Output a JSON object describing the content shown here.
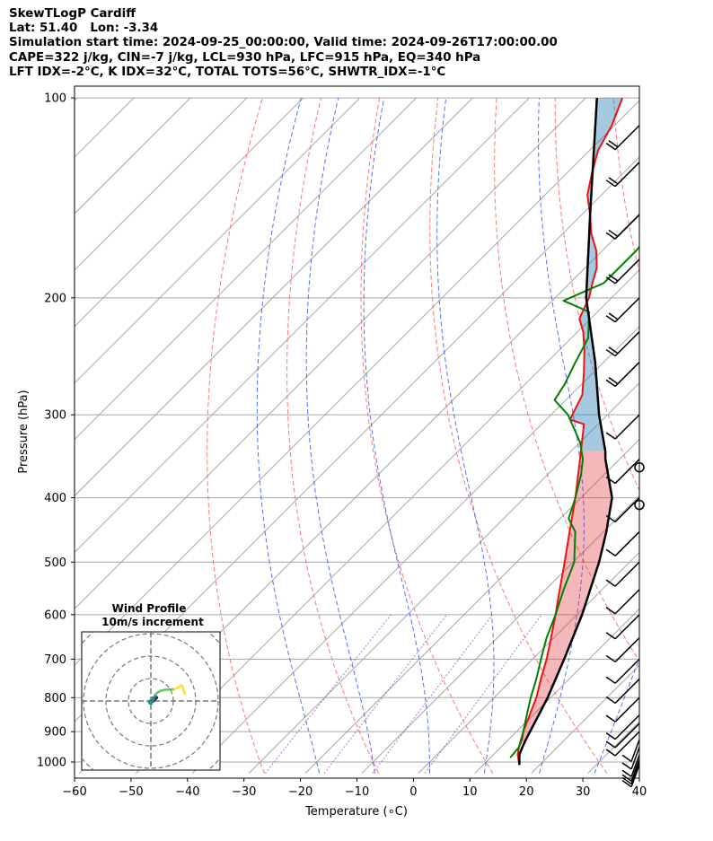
{
  "header": {
    "title": "SkewTLogP Cardiff",
    "location": "Lat: 51.40   Lon: -3.34",
    "times": "Simulation start time: 2024-09-25_00:00:00, Valid time: 2024-09-26T17:00:00.00",
    "indices_1": "CAPE=322 j/kg, CIN=-7 j/kg, LCL=930 hPa, LFC=915 hPa, EQ=340 hPa",
    "indices_2": "LFT IDX=-2°C, K IDX=32°C, TOTAL TOTS=56°C, SHWTR_IDX=-1°C"
  },
  "chart_data": {
    "type": "line",
    "chart_kind": "skew-T log-P diagram",
    "xlabel": "Temperature (∘C)",
    "ylabel": "Pressure (hPa)",
    "xlim": [
      -60,
      40
    ],
    "ylim_hpa": [
      1040,
      100
    ],
    "y_scale": "log",
    "grid": true,
    "x_ticks": [
      -60,
      -50,
      -40,
      -30,
      -20,
      -10,
      0,
      10,
      20,
      30,
      40
    ],
    "y_ticks": [
      100,
      200,
      300,
      400,
      500,
      600,
      700,
      800,
      900,
      1000
    ],
    "series": [
      {
        "role": "temperature",
        "color": "#ee1111",
        "points": [
          [
            1010,
            16.4
          ],
          [
            975,
            14.3
          ],
          [
            950,
            13.2
          ],
          [
            925,
            12.4
          ],
          [
            900,
            11.2
          ],
          [
            850,
            9.4
          ],
          [
            800,
            7.5
          ],
          [
            750,
            5.0
          ],
          [
            700,
            2.5
          ],
          [
            650,
            -0.5
          ],
          [
            600,
            -3.8
          ],
          [
            550,
            -7.5
          ],
          [
            500,
            -11.5
          ],
          [
            450,
            -16.0
          ],
          [
            400,
            -21.0
          ],
          [
            370,
            -24.5
          ],
          [
            350,
            -27.0
          ],
          [
            310,
            -32.5
          ],
          [
            305,
            -35.8
          ],
          [
            280,
            -38.0
          ],
          [
            260,
            -41.5
          ],
          [
            240,
            -45.5
          ],
          [
            225,
            -49.0
          ],
          [
            215,
            -52.0
          ],
          [
            200,
            -54.0
          ],
          [
            190,
            -56.0
          ],
          [
            180,
            -58.0
          ],
          [
            170,
            -61.0
          ],
          [
            160,
            -65.0
          ],
          [
            150,
            -68.5
          ],
          [
            140,
            -72.5
          ],
          [
            130,
            -75.5
          ],
          [
            120,
            -78.5
          ],
          [
            110,
            -80.5
          ],
          [
            100,
            -83.5
          ]
        ]
      },
      {
        "role": "dewpoint",
        "color": "#008000",
        "points": [
          [
            985,
            13.5
          ],
          [
            950,
            13.2
          ],
          [
            925,
            12.2
          ],
          [
            900,
            11.2
          ],
          [
            850,
            8.9
          ],
          [
            800,
            6.5
          ],
          [
            750,
            4.2
          ],
          [
            700,
            1.5
          ],
          [
            650,
            -1.3
          ],
          [
            600,
            -3.8
          ],
          [
            550,
            -6.8
          ],
          [
            500,
            -9.8
          ],
          [
            450,
            -15.0
          ],
          [
            430,
            -18.5
          ],
          [
            400,
            -21.0
          ],
          [
            370,
            -24.0
          ],
          [
            350,
            -26.5
          ],
          [
            330,
            -30.0
          ],
          [
            300,
            -37.0
          ],
          [
            285,
            -42.0
          ],
          [
            270,
            -43.0
          ],
          [
            250,
            -45.0
          ],
          [
            230,
            -47.0
          ],
          [
            210,
            -51.5
          ],
          [
            202,
            -58.0
          ],
          [
            190,
            -54.0
          ],
          [
            170,
            -54.0
          ],
          [
            150,
            -55.0
          ],
          [
            130,
            -57.0
          ],
          [
            110,
            -59.0
          ],
          [
            100,
            -61.0
          ]
        ]
      },
      {
        "role": "parcel",
        "color": "#000000",
        "points": [
          [
            1010,
            16.4
          ],
          [
            975,
            14.6
          ],
          [
            950,
            13.8
          ],
          [
            930,
            13.2
          ],
          [
            900,
            12.4
          ],
          [
            850,
            11.0
          ],
          [
            800,
            9.5
          ],
          [
            700,
            5.6
          ],
          [
            600,
            0.9
          ],
          [
            500,
            -5.4
          ],
          [
            450,
            -9.5
          ],
          [
            400,
            -14.5
          ],
          [
            350,
            -22.5
          ],
          [
            340,
            -24.0
          ],
          [
            300,
            -31.5
          ],
          [
            250,
            -41.5
          ],
          [
            200,
            -54.5
          ],
          [
            150,
            -68.5
          ],
          [
            100,
            -88.0
          ]
        ]
      }
    ],
    "shaded_regions": [
      {
        "meaning": "CAPE (parcel warmer than environment)",
        "color": "#e0313a",
        "from_hpa": 930,
        "to_hpa": 340
      },
      {
        "meaning": "parcel colder than environment",
        "color": "#1f77b4",
        "from_hpa": 340,
        "to_hpa": 100
      }
    ],
    "background_lines": {
      "isotherms_color": "#a6a6a6",
      "dry_adiabats_color": "#ff5e5e",
      "moist_adiabats_color": "#2b4bff",
      "mixing_ratio_color": "#9b30c8",
      "dry_adiabat_theta_c": [
        -30,
        -10,
        10,
        30,
        50,
        70,
        90,
        110,
        130,
        150,
        170
      ],
      "moist_adiabat_start_c": [
        -20,
        -10,
        0,
        10,
        20,
        30,
        40
      ]
    },
    "wind_barbs_hpa": [
      1010,
      1000,
      990,
      975,
      950,
      925,
      900,
      875,
      850,
      800,
      750,
      700,
      650,
      600,
      550,
      500,
      450,
      400,
      350,
      300,
      250,
      225,
      200,
      175,
      150,
      125,
      110
    ],
    "wind_barbs_calm_hpa": [
      360,
      410
    ],
    "hodograph": {
      "title": "Wind Profile",
      "subtitle": "10m/s increment",
      "rings_ms": [
        10,
        20,
        30,
        40
      ],
      "colormap": [
        "#440154",
        "#3b528b",
        "#21918c",
        "#5ec962",
        "#fde725"
      ],
      "points_uv": [
        [
          0.5,
          -0.5
        ],
        [
          1.0,
          -0.2
        ],
        [
          1.8,
          0.6
        ],
        [
          2.2,
          1.0
        ],
        [
          2.8,
          1.5
        ],
        [
          2.3,
          1.9
        ],
        [
          1.4,
          1.6
        ],
        [
          0.8,
          1.4
        ],
        [
          1.5,
          0.8
        ],
        [
          0.6,
          0.2
        ],
        [
          -0.6,
          0.0
        ],
        [
          -0.9,
          -0.4
        ],
        [
          -0.4,
          -1.1
        ],
        [
          0.3,
          -1.2
        ],
        [
          1.0,
          0.8
        ],
        [
          2.0,
          2.8
        ],
        [
          3.0,
          3.8
        ],
        [
          4.5,
          4.6
        ],
        [
          6.5,
          5.0
        ],
        [
          8.5,
          5.1
        ],
        [
          10.5,
          5.2
        ],
        [
          12.5,
          6.2
        ],
        [
          13.5,
          7.0
        ],
        [
          14.2,
          6.3
        ],
        [
          14.8,
          4.3
        ],
        [
          15.2,
          3.2
        ]
      ]
    }
  }
}
